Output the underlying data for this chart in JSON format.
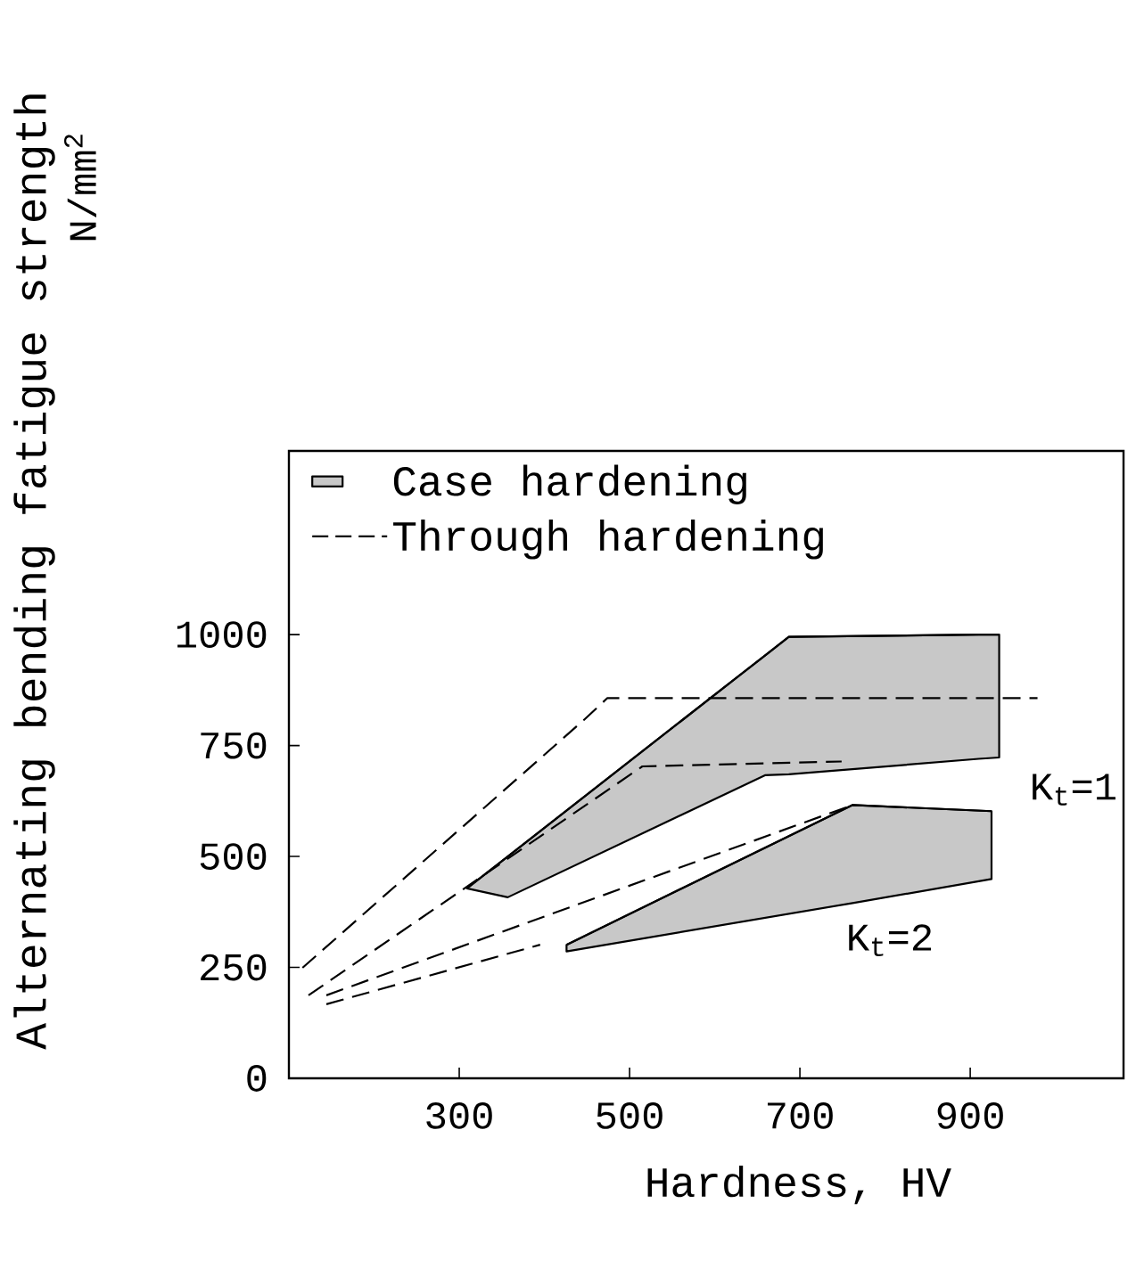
{
  "chart_data": {
    "type": "line",
    "xlabel": "Hardness, HV",
    "ylabel": "Alternating bending fatigue strength",
    "xlim": [
      100,
      1080
    ],
    "ylim": [
      0,
      1414
    ],
    "xticks": [
      300,
      500,
      700,
      900
    ],
    "yticks": [
      0,
      250,
      500,
      750,
      1000
    ],
    "legend": "top left",
    "grid": false,
    "series": [
      {
        "name": "Through hardening",
        "line_style": "dashed",
        "color": "#000000",
        "x": [
          116,
          446,
          474,
          979
        ],
        "values": [
          249,
          807,
          857,
          857
        ]
      },
      {
        "line_style": "dashed",
        "color": "#000000",
        "x": [
          123,
          515,
          749
        ],
        "values": [
          187,
          703,
          714
        ]
      },
      {
        "line_style": "dashed",
        "color": "#000000",
        "x": [
          144,
          762
        ],
        "values": [
          187,
          616
        ]
      },
      {
        "line_style": "dashed",
        "color": "#000000",
        "x": [
          144,
          395
        ],
        "values": [
          167,
          301
        ]
      },
      {
        "name": "Case hardening",
        "type": "line",
        "line_style": "solid",
        "color": "#000000",
        "x": [
          309,
          357,
          659,
          687,
          910,
          934
        ],
        "values": [
          428,
          500,
          953,
          995,
          1000,
          1000
        ],
        "lower": [
          428,
          408,
          683,
          685,
          720,
          723
        ],
        "upper": [
          428,
          500,
          953,
          995,
          1000,
          1000
        ]
      },
      {
        "type": "line",
        "line_style": "solid",
        "color": "#000000",
        "x": [
          426,
          762,
          925
        ],
        "values": [
          301,
          616,
          602
        ],
        "lower": [
          286,
          395,
          449
        ],
        "upper": [
          301,
          616,
          602
        ]
      }
    ],
    "annotations": [
      "K$_{t}$=1",
      "K$_{t}$=2",
      "N/mm$^{2}$"
    ]
  }
}
